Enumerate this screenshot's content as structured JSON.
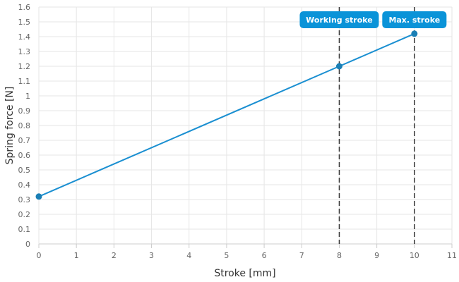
{
  "chart_data": {
    "type": "line",
    "xlabel": "Stroke [mm]",
    "ylabel": "Spring force [N]",
    "xlim": [
      0,
      11
    ],
    "ylim": [
      0,
      1.6
    ],
    "x_ticks": [
      0,
      1,
      2,
      3,
      4,
      5,
      6,
      7,
      8,
      9,
      10,
      11
    ],
    "y_ticks": [
      0,
      0.1,
      0.2,
      0.3,
      0.4,
      0.5,
      0.6,
      0.7,
      0.8,
      0.9,
      1.0,
      1.1,
      1.2,
      1.3,
      1.4,
      1.5,
      1.6
    ],
    "grid": true,
    "line_color": "#1a8fd1",
    "series": [
      {
        "x": [
          0,
          8,
          10
        ],
        "y": [
          0.32,
          1.2,
          1.42
        ]
      }
    ],
    "markers": [
      {
        "x": 8,
        "label": "Working stroke"
      },
      {
        "x": 10,
        "label": "Max. stroke"
      }
    ],
    "marker_label_color": "#0a93d8"
  }
}
